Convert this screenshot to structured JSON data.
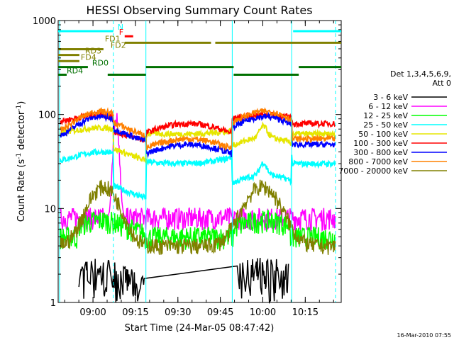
{
  "chart_data": {
    "type": "line",
    "title": "HESSI Observing Summary Count Rates",
    "xlabel": "Start Time (24-Mar-05 08:47:42)",
    "ylabel_main": "Count Rate (s",
    "ylabel_sup1": "-1",
    "ylabel_mid": " detector",
    "ylabel_sup2": "-1",
    "ylabel_end": ")",
    "y_scale": "log",
    "ylim": [
      1,
      1000
    ],
    "xlim_minutes": [
      0,
      100
    ],
    "yticks": [
      {
        "v": 1,
        "label": "1"
      },
      {
        "v": 10,
        "label": "10"
      },
      {
        "v": 100,
        "label": "100"
      },
      {
        "v": 1000,
        "label": "1000"
      }
    ],
    "xticks": [
      {
        "m": 12.3,
        "label": "09:00"
      },
      {
        "m": 27.3,
        "label": "09:15"
      },
      {
        "m": 42.3,
        "label": "09:30"
      },
      {
        "m": 57.3,
        "label": "09:45"
      },
      {
        "m": 72.3,
        "label": "10:00"
      },
      {
        "m": 87.3,
        "label": "10:15"
      }
    ],
    "legend_title": [
      "Det 1,3,4,5,6,9,",
      "Att 0"
    ],
    "series": [
      {
        "name": "3 - 6 keV",
        "color": "#000000",
        "kind": "sparse",
        "night": 0.7,
        "peak": 2.5
      },
      {
        "name": "6 - 12 keV",
        "color": "#ff00ff",
        "kind": "noisy",
        "night": 8,
        "peak": 12,
        "flare": 90
      },
      {
        "name": "12 - 25 keV",
        "color": "#00ff00",
        "kind": "noisy",
        "night": 5,
        "peak": 9
      },
      {
        "name": "25 - 50 keV",
        "color": "#00ffff",
        "kind": "smooth",
        "night": 30,
        "peak": 40,
        "pit": 12,
        "bump": 18
      },
      {
        "name": "50 - 100 keV",
        "color": "#e6e600",
        "kind": "smooth",
        "night": 62,
        "peak": 72,
        "pit": 30,
        "bump": 45
      },
      {
        "name": "100 - 300 keV",
        "color": "#ff0000",
        "kind": "smooth",
        "night": 80,
        "peak": 100,
        "pit": 50,
        "bump": 80
      },
      {
        "name": "300 - 800 keV",
        "color": "#0000ff",
        "kind": "smooth",
        "night": 48,
        "peak": 95,
        "pit": 48,
        "bump": 90
      },
      {
        "name": "800 - 7000 keV",
        "color": "#ff8000",
        "kind": "smooth",
        "night": 55,
        "peak": 108,
        "pit": 55,
        "bump": 105
      },
      {
        "name": "7000 - 20000 keV",
        "color": "#808000",
        "kind": "orbit",
        "night": 4,
        "peak": 17
      }
    ],
    "flag_bars": [
      {
        "label": "N",
        "color": "#00ffff",
        "y": 770,
        "segments": [
          [
            0,
            19.5
          ],
          [
            83,
            100
          ]
        ],
        "label_at": 20
      },
      {
        "label": "F",
        "color": "#ff0000",
        "y": 680,
        "segments": [
          [
            23.5,
            26.5
          ]
        ],
        "label_at": 20.5
      },
      {
        "label": "FD1",
        "color": "#808000",
        "y": 580,
        "segments": [
          [
            23.5,
            54
          ],
          [
            55.5,
            100
          ]
        ],
        "label_at": 15.5
      },
      {
        "label": "FD2",
        "color": "#808000",
        "y": 495,
        "segments": [
          [
            0,
            16
          ]
        ],
        "label_at": 17.5
      },
      {
        "label": "RD3",
        "color": "#808000",
        "y": 430,
        "segments": [
          [
            0,
            7.5
          ]
        ],
        "label_at": 8.5
      },
      {
        "label": "FD4",
        "color": "#808000",
        "y": 370,
        "segments": [
          [
            0,
            7.5
          ]
        ],
        "label_at": 7
      },
      {
        "label": "RD0",
        "color": "#007000",
        "y": 320,
        "segments": [
          [
            0,
            10.5
          ],
          [
            31,
            62
          ],
          [
            85,
            100
          ]
        ],
        "label_at": 11
      },
      {
        "label": "RD4",
        "color": "#007000",
        "y": 265,
        "segments": [
          [
            0,
            3
          ],
          [
            17.5,
            31
          ],
          [
            62,
            85
          ]
        ],
        "label_at": 2
      }
    ],
    "attenuator_lines": [
      {
        "m": 0.5,
        "style": "solid"
      },
      {
        "m": 19.5,
        "style": "dashed"
      },
      {
        "m": 31,
        "style": "solid"
      },
      {
        "m": 61.5,
        "style": "solid"
      },
      {
        "m": 82.5,
        "style": "solid"
      },
      {
        "m": 98,
        "style": "dashed"
      }
    ],
    "timestamp": "16-Mar-2010 07:55"
  }
}
